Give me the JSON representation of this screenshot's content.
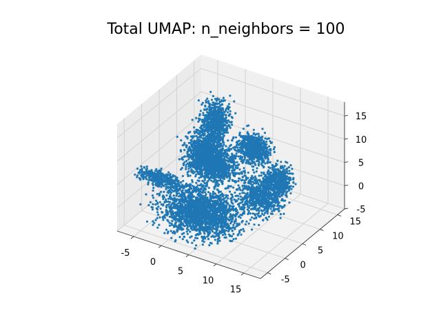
{
  "chart_data": {
    "type": "scatter",
    "projection": "3d",
    "title": "Total UMAP: n_neighbors = 100",
    "xlabel": "",
    "ylabel": "",
    "zlabel": "",
    "xlim": [
      -8,
      18
    ],
    "ylim": [
      -7,
      17
    ],
    "zlim": [
      -5,
      18
    ],
    "x_ticks": [
      -5,
      0,
      5,
      10,
      15
    ],
    "y_ticks": [
      -5,
      0,
      5,
      10,
      15
    ],
    "z_ticks": [
      -5,
      0,
      5,
      10,
      15
    ],
    "grid": true,
    "legend": null,
    "series": [
      {
        "color": "#1f77b4",
        "marker": "point",
        "clusters": [
          {
            "center": [
              3,
              0,
              -1
            ],
            "spread": [
              4.5,
              3.5,
              2.5
            ],
            "weight": 5
          },
          {
            "center": [
              1,
              4,
              9
            ],
            "spread": [
              2.0,
              2.5,
              3.0
            ],
            "weight": 2
          },
          {
            "center": [
              -1,
              10,
              11
            ],
            "spread": [
              1.5,
              1.5,
              3.0
            ],
            "weight": 1.5
          },
          {
            "center": [
              0,
              8,
              3
            ],
            "spread": [
              3.0,
              2.0,
              2.0
            ],
            "weight": 2
          },
          {
            "center": [
              4,
              13,
              5
            ],
            "spread": [
              2.0,
              1.5,
              2.0
            ],
            "weight": 1.5
          },
          {
            "center": [
              -4,
              -1,
              4
            ],
            "spread": [
              3.0,
              1.0,
              0.8
            ],
            "weight": 1
          },
          {
            "center": [
              8,
              9,
              -1
            ],
            "spread": [
              2.5,
              2.0,
              2.5
            ],
            "weight": 1.8
          },
          {
            "center": [
              10,
              11,
              2
            ],
            "spread": [
              1.5,
              1.2,
              2.0
            ],
            "weight": 1
          }
        ]
      }
    ]
  }
}
